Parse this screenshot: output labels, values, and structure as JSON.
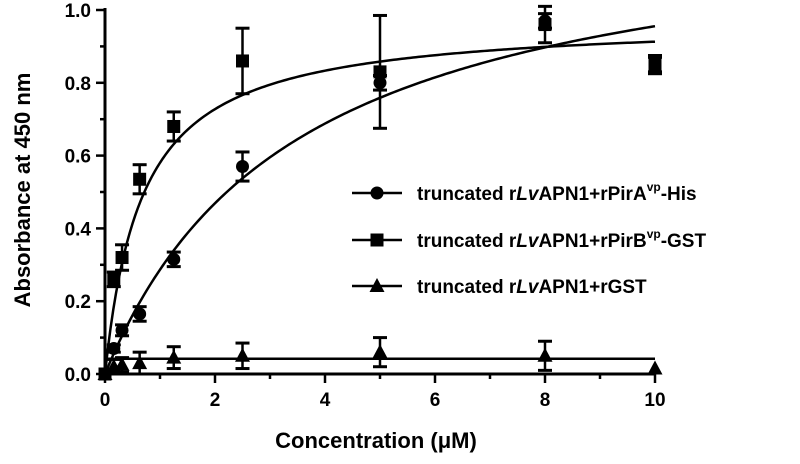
{
  "chart_data": {
    "type": "scatter",
    "xlabel": "Concentration (μM)",
    "ylabel": "Absorbance at 450 nm",
    "xlim": [
      0,
      10
    ],
    "ylim": [
      0,
      1.0
    ],
    "x_ticks": [
      "0",
      "2",
      "4",
      "6",
      "8",
      "10"
    ],
    "y_ticks": [
      "0.0",
      "0.2",
      "0.4",
      "0.6",
      "0.8",
      "1.0"
    ],
    "legend_position": "right",
    "series": [
      {
        "name_parts": [
          "truncated r",
          "Lv",
          "APN1+rPirA",
          "vp",
          "-His"
        ],
        "marker": "circle",
        "x": [
          0,
          0.16,
          0.31,
          0.63,
          1.25,
          2.5,
          5,
          8,
          10
        ],
        "y": [
          0.0,
          0.07,
          0.12,
          0.165,
          0.315,
          0.57,
          0.8,
          0.97,
          0.85
        ],
        "err": [
          0.005,
          0.01,
          0.015,
          0.02,
          0.02,
          0.04,
          0.02,
          0.02,
          0.02
        ],
        "fit": {
          "model": "one-site",
          "bmax": 1.29,
          "kd": 3.5
        }
      },
      {
        "name_parts": [
          "truncated r",
          "Lv",
          "APN1+rPirB",
          "vp",
          "-GST"
        ],
        "marker": "square",
        "x": [
          0,
          0.16,
          0.31,
          0.63,
          1.25,
          2.5,
          5,
          8,
          10
        ],
        "y": [
          0.0,
          0.26,
          0.32,
          0.535,
          0.68,
          0.86,
          0.83,
          0.96,
          0.85
        ],
        "err": [
          0.005,
          0.02,
          0.035,
          0.04,
          0.04,
          0.09,
          0.155,
          0.05,
          0.025
        ],
        "fit": {
          "model": "one-site",
          "bmax": 0.975,
          "kd": 0.68
        }
      },
      {
        "name_parts": [
          "truncated r",
          "Lv",
          "APN1+rGST"
        ],
        "marker": "triangle",
        "x": [
          0,
          0.16,
          0.31,
          0.63,
          1.25,
          2.5,
          5,
          8,
          10
        ],
        "y": [
          0.0,
          0.02,
          0.025,
          0.03,
          0.045,
          0.05,
          0.06,
          0.05,
          0.015
        ],
        "err": [
          0.003,
          0.02,
          0.02,
          0.03,
          0.03,
          0.035,
          0.04,
          0.04,
          0.005
        ],
        "fit": {
          "model": "constant",
          "value": 0.042
        }
      }
    ]
  }
}
